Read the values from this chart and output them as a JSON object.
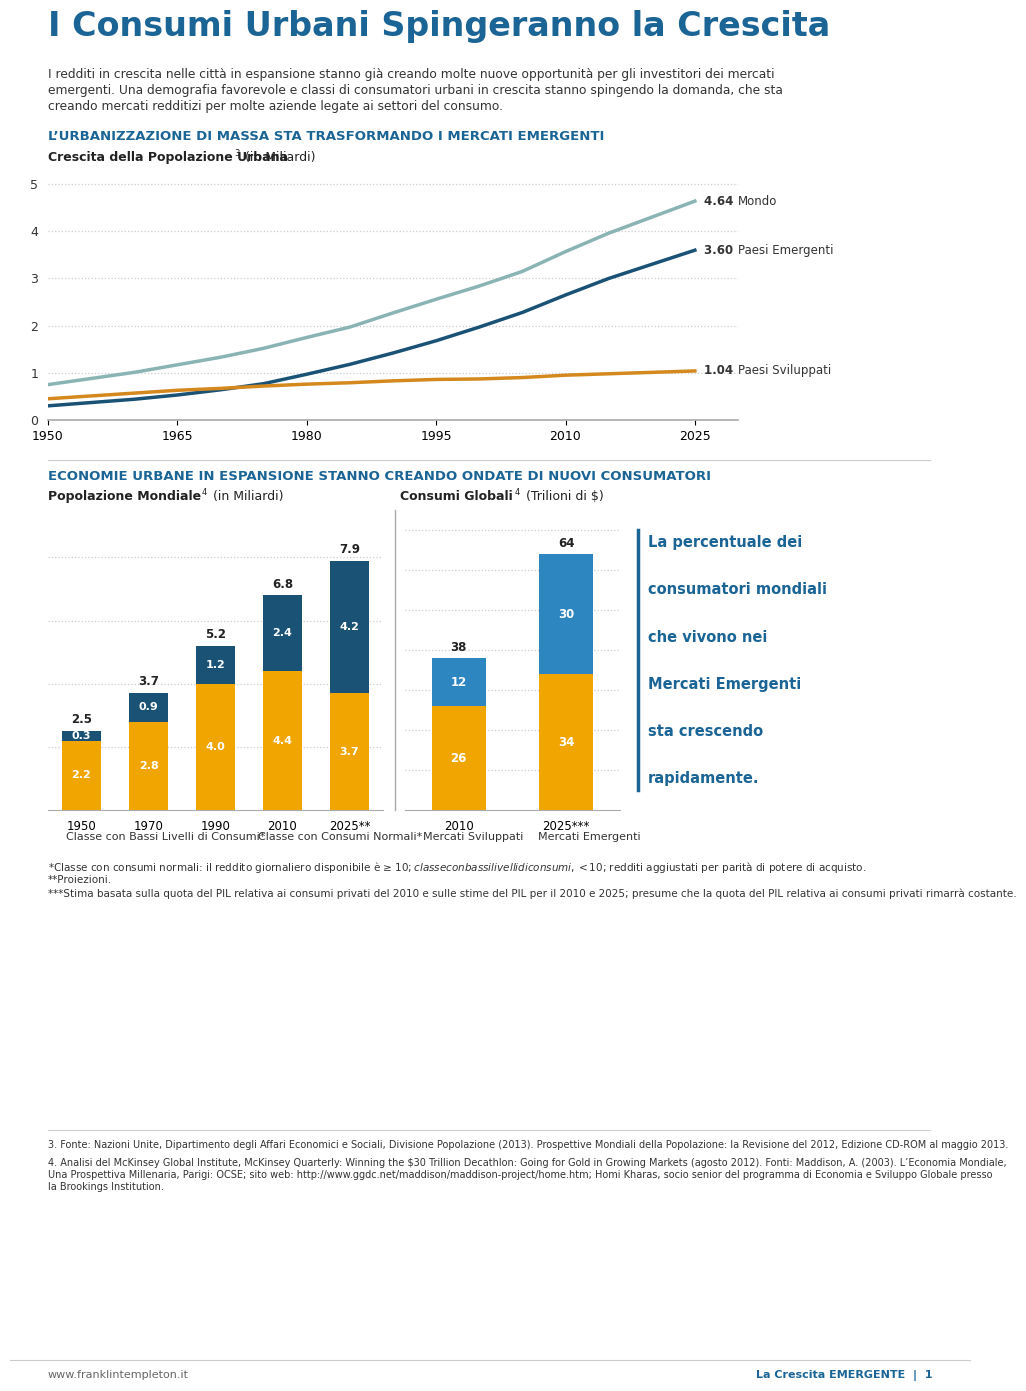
{
  "title": "I Consumi Urbani Spingeranno la Crescita",
  "title_color": "#1a6496",
  "intro_line1": "I redditi in crescita nelle città in espansione stanno già creando molte nuove opportunità per gli investitori dei mercati",
  "intro_line2": "emergenti. Una demografia favorevole e classi di consumatori urbani in crescita stanno spingendo la domanda, che sta",
  "intro_line3": "creando mercati redditizi per molte aziende legate ai settori del consumo.",
  "section1_title": "L’URBANIZZAZIONE DI MASSA STA TRASFORMANDO I MERCATI EMERGENTI",
  "section1_subtitle": "Crescita della Popolazione Urbana",
  "section1_subtitle_super": "3",
  "section1_subtitle_suffix": " (in Miliardi)",
  "line_years": [
    1950,
    1955,
    1960,
    1965,
    1970,
    1975,
    1980,
    1985,
    1990,
    1995,
    2000,
    2005,
    2010,
    2015,
    2020,
    2025
  ],
  "line_mondo": [
    0.75,
    0.88,
    1.01,
    1.17,
    1.33,
    1.52,
    1.75,
    1.97,
    2.27,
    2.56,
    2.84,
    3.15,
    3.57,
    3.96,
    4.3,
    4.64
  ],
  "line_emergenti": [
    0.3,
    0.37,
    0.44,
    0.53,
    0.64,
    0.77,
    0.97,
    1.18,
    1.42,
    1.68,
    1.97,
    2.28,
    2.65,
    3.0,
    3.3,
    3.6
  ],
  "line_sviluppati": [
    0.45,
    0.51,
    0.57,
    0.63,
    0.67,
    0.72,
    0.76,
    0.79,
    0.83,
    0.86,
    0.87,
    0.9,
    0.95,
    0.98,
    1.01,
    1.04
  ],
  "line_mondo_color": "#8ab4b4",
  "line_emergenti_color": "#1a5276",
  "line_sviluppati_color": "#d4881e",
  "line_mondo_label_val": "4.64",
  "line_mondo_label_txt": "Mondo",
  "line_emergenti_label_val": "3.60",
  "line_emergenti_label_txt": "Paesi Emergenti",
  "line_sviluppati_label_val": "1.04",
  "line_sviluppati_label_txt": "Paesi Sviluppati",
  "section2_title": "ECONOMIE URBANE IN ESPANSIONE STANNO CREANDO ONDATE DI NUOVI CONSUMATORI",
  "section2_left_title": "Popolazione Mondiale",
  "section2_left_super": "4",
  "section2_left_suffix": " (in Miliardi)",
  "section2_right_title": "Consumi Globali",
  "section2_right_super": "4",
  "section2_right_suffix": " (Trilioni di $)",
  "pop_categories": [
    "1950",
    "1970",
    "1990",
    "2010",
    "2025**"
  ],
  "pop_low": [
    2.2,
    2.8,
    4.0,
    4.4,
    3.7
  ],
  "pop_normal": [
    0.3,
    0.9,
    1.2,
    2.4,
    4.2
  ],
  "pop_total": [
    2.5,
    3.7,
    5.2,
    6.8,
    7.9
  ],
  "cons_categories": [
    "2010",
    "2025***"
  ],
  "cons_sviluppati": [
    26,
    34
  ],
  "cons_emergenti": [
    12,
    30
  ],
  "cons_total": [
    38,
    64
  ],
  "bar_orange": "#f0a500",
  "bar_blue_dark": "#1a5276",
  "bar_blue_cons": "#2e86c1",
  "sidebar_lines": [
    "La percentuale dei",
    "consumatori mondiali",
    "che vivono nei",
    "Mercati Emergenti",
    "sta crescendo",
    "rapidamente."
  ],
  "sidebar_bold_from": 0,
  "legend_label1": "Classe con Bassi Livelli di Consumi*",
  "legend_label2": "Classe con Consumi Normali*",
  "legend_label3": "Mercati Sviluppati",
  "legend_label4": "Mercati Emergenti",
  "note1": "*Classe con consumi normali: il reddito giornaliero disponibile è ≥ $10; classe con bassi livelli di consumi, < $10; redditi aggiustati per parità di potere di acquisto.",
  "note2": "**Proiezioni.",
  "note3": "***Stima basata sulla quota del PIL relativa ai consumi privati del 2010 e sulle stime del PIL per il 2010 e 2025; presume che la quota del PIL relativa ai consumi privati rimarrà costante.",
  "footnote3": "3. Fonte: Nazioni Unite, Dipartimento degli Affari Economici e Sociali, Divisione Popolazione (2013). Prospettive Mondiali della Popolazione: la Revisione del 2012, Edizione CD-ROM al maggio 2013.",
  "footnote4a": "4. Analisi del McKinsey Global Institute, McKinsey Quarterly: Winning the $30 Trillion Decathlon: Going for Gold in Growing Markets (agosto 2012). Fonti: Maddison, A. (2003). L’Economia Mondiale,",
  "footnote4b": "Una Prospettiva Millenaria, Parigi: OCSE; sito web: http://www.ggdc.net/maddison/maddison-project/home.htm; Homi Kharas, socio senior del programma di Economia e Sviluppo Globale presso",
  "footnote4c": "la Brookings Institution.",
  "background_color": "#ffffff",
  "section_title_color": "#1a6496",
  "text_color": "#333333",
  "dark_text": "#222222",
  "dotted_color": "#cccccc",
  "footer_left": "www.franklintempleton.it",
  "footer_right": "La Crescita EMERGENTE",
  "footer_page": "1",
  "sidebar_color": "#1a6496",
  "sidebar_border_color": "#1a6496"
}
